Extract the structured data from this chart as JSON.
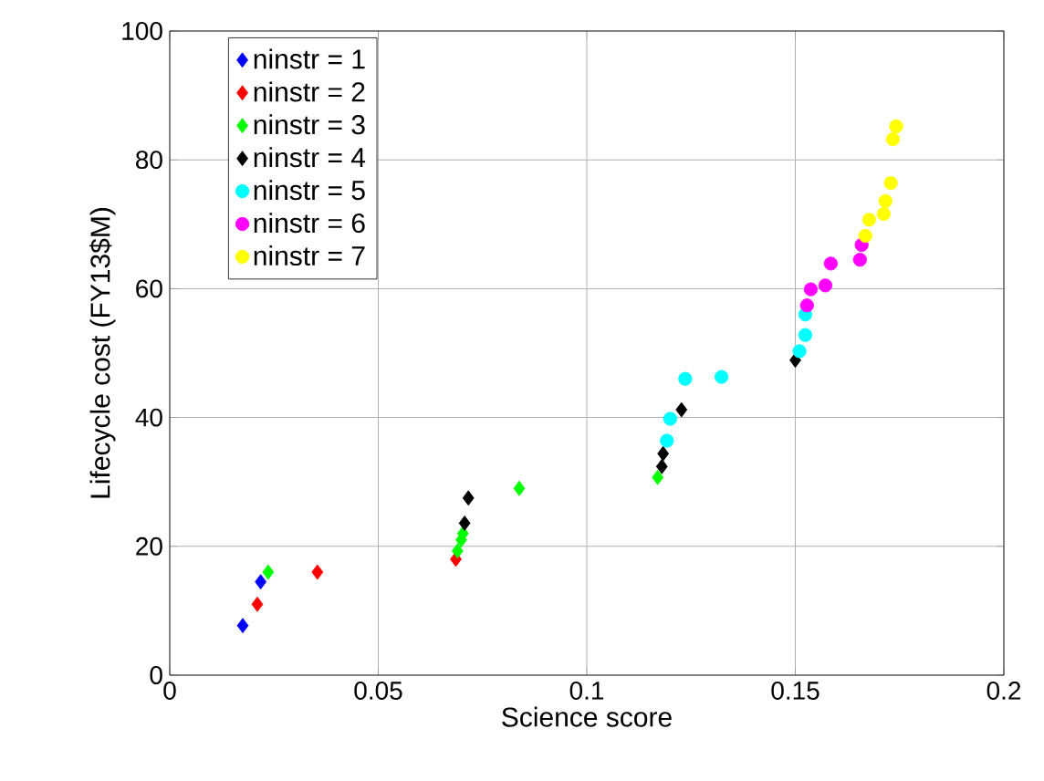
{
  "chart_data": {
    "type": "scatter",
    "xlabel": "Science score",
    "ylabel": "Lifecycle cost (FY13$M)",
    "xlim": [
      0,
      0.2
    ],
    "ylim": [
      0,
      100
    ],
    "xticks": [
      0,
      0.05,
      0.1,
      0.15,
      0.2
    ],
    "yticks": [
      0,
      20,
      40,
      60,
      80,
      100
    ],
    "grid": true,
    "legend": "top left",
    "series": [
      {
        "name": "ninstr = 1",
        "color": "#0000ff",
        "marker": "diamond",
        "x": [
          0.0175,
          0.0218
        ],
        "values": [
          7.7,
          14.5
        ]
      },
      {
        "name": "ninstr = 2",
        "color": "#ff0000",
        "marker": "diamond",
        "x": [
          0.021,
          0.0354,
          0.0686
        ],
        "values": [
          11,
          16,
          18
        ]
      },
      {
        "name": "ninstr = 3",
        "color": "#00ff00",
        "marker": "diamond",
        "x": [
          0.0236,
          0.069,
          0.0699,
          0.0703,
          0.0838,
          0.117
        ],
        "values": [
          16,
          19.3,
          21,
          22,
          29,
          30.7
        ]
      },
      {
        "name": "ninstr = 4",
        "color": "#000000",
        "marker": "diamond",
        "x": [
          0.0707,
          0.0716,
          0.118,
          0.1183,
          0.1222,
          0.1227,
          0.15
        ],
        "values": [
          23.6,
          27.5,
          32.4,
          34.4,
          null,
          41.2,
          48.9
        ]
      },
      {
        "name": "ninstr = 5",
        "color": "#00ffff",
        "marker": "circle",
        "x": [
          0.1192,
          0.12,
          0.1236,
          0.1323,
          0.151,
          0.1524,
          0.1524
        ],
        "values": [
          36.4,
          39.8,
          46,
          46.3,
          50.3,
          52.8,
          56
        ]
      },
      {
        "name": "ninstr = 6",
        "color": "#ff00ff",
        "marker": "circle",
        "x": [
          0.1528,
          0.1537,
          0.1572,
          0.1585,
          0.1655,
          0.1659
        ],
        "values": [
          57.4,
          59.9,
          60.5,
          63.9,
          64.5,
          66.8
        ]
      },
      {
        "name": "ninstr = 7",
        "color": "#ffff00",
        "marker": "circle",
        "x": [
          0.1668,
          0.1677,
          0.1712,
          0.1716,
          0.1729,
          0.1734,
          0.1742
        ],
        "values": [
          68.2,
          70.7,
          71.6,
          73.6,
          76.4,
          83.2,
          85.2
        ]
      }
    ]
  }
}
